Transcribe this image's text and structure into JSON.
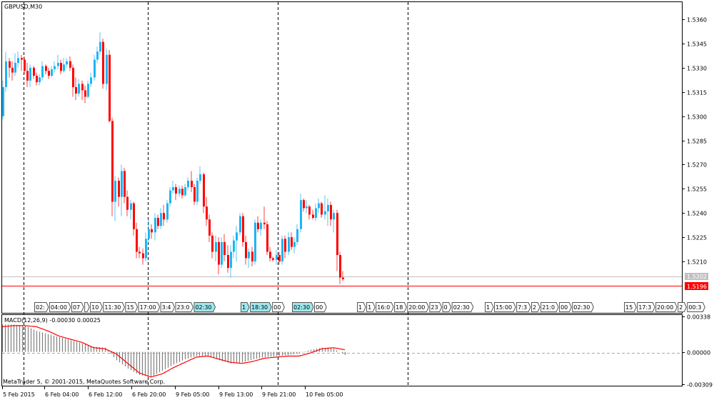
{
  "window": {
    "symbol_title": "GBPUSD,M30"
  },
  "colors": {
    "bull": "#1eb4f5",
    "bear": "#ff0000",
    "neutral": "#000000",
    "histogram": "#808080",
    "signal": "#ff0000",
    "bid_line": "#c0c0c0",
    "ask_line": "#ff0000",
    "event_highlight": "#9ee8ee"
  },
  "price_axis": {
    "ticks": [
      "1.5360",
      "1.5345",
      "1.5330",
      "1.5315",
      "1.5300",
      "1.5285",
      "1.5270",
      "1.5255",
      "1.5240",
      "1.5225",
      "1.5210"
    ],
    "range": [
      1.5198,
      1.5372
    ]
  },
  "price_lines": {
    "bid": {
      "label": "1.5202",
      "value": 1.5202
    },
    "ask": {
      "label": "1.5196",
      "value": 1.5196
    }
  },
  "candles_ohlc": [
    [
      1.53,
      1.5322,
      1.5298,
      1.5318
    ],
    [
      1.5318,
      1.534,
      1.5315,
      1.5334
    ],
    [
      1.5334,
      1.5336,
      1.5324,
      1.533
    ],
    [
      1.533,
      1.5334,
      1.5322,
      1.5327
    ],
    [
      1.5327,
      1.5339,
      1.5325,
      1.5333
    ],
    [
      1.5333,
      1.534,
      1.533,
      1.5336
    ],
    [
      1.5336,
      1.5338,
      1.5328,
      1.5335
    ],
    [
      1.5335,
      1.5337,
      1.5326,
      1.5328
    ],
    [
      1.5328,
      1.5333,
      1.5318,
      1.5322
    ],
    [
      1.5322,
      1.5332,
      1.5318,
      1.533
    ],
    [
      1.533,
      1.5331,
      1.5323,
      1.5325
    ],
    [
      1.5325,
      1.5327,
      1.5319,
      1.5321
    ],
    [
      1.5321,
      1.5326,
      1.5319,
      1.5324
    ],
    [
      1.5324,
      1.5334,
      1.5322,
      1.5331
    ],
    [
      1.5331,
      1.5332,
      1.5326,
      1.5328
    ],
    [
      1.5328,
      1.533,
      1.5323,
      1.5325
    ],
    [
      1.5325,
      1.5331,
      1.5324,
      1.5329
    ],
    [
      1.5329,
      1.5334,
      1.5327,
      1.5331
    ],
    [
      1.5331,
      1.5338,
      1.5329,
      1.5333
    ],
    [
      1.5333,
      1.5335,
      1.5326,
      1.5328
    ],
    [
      1.5328,
      1.5336,
      1.5327,
      1.5332
    ],
    [
      1.5332,
      1.5336,
      1.533,
      1.5334
    ],
    [
      1.5334,
      1.5337,
      1.5328,
      1.533
    ],
    [
      1.533,
      1.5332,
      1.5312,
      1.5318
    ],
    [
      1.5318,
      1.5324,
      1.531,
      1.5314
    ],
    [
      1.5314,
      1.5323,
      1.5312,
      1.532
    ],
    [
      1.532,
      1.5322,
      1.531,
      1.5316
    ],
    [
      1.5316,
      1.5319,
      1.5308,
      1.5312
    ],
    [
      1.5312,
      1.5322,
      1.5311,
      1.532
    ],
    [
      1.532,
      1.5327,
      1.5318,
      1.5324
    ],
    [
      1.5324,
      1.5338,
      1.5322,
      1.5335
    ],
    [
      1.5335,
      1.5343,
      1.5333,
      1.534
    ],
    [
      1.534,
      1.5352,
      1.5338,
      1.5346
    ],
    [
      1.5346,
      1.5348,
      1.5317,
      1.532
    ],
    [
      1.532,
      1.5342,
      1.5316,
      1.5338
    ],
    [
      1.5338,
      1.5341,
      1.5296,
      1.5297
    ],
    [
      1.5297,
      1.5299,
      1.5238,
      1.5247
    ],
    [
      1.5247,
      1.5263,
      1.5235,
      1.526
    ],
    [
      1.526,
      1.5262,
      1.5244,
      1.525
    ],
    [
      1.525,
      1.527,
      1.5238,
      1.5266
    ],
    [
      1.5266,
      1.5268,
      1.5246,
      1.525
    ],
    [
      1.525,
      1.5254,
      1.5238,
      1.5242
    ],
    [
      1.5242,
      1.5248,
      1.5236,
      1.5246
    ],
    [
      1.5246,
      1.5247,
      1.5226,
      1.523
    ],
    [
      1.523,
      1.5234,
      1.5212,
      1.5216
    ],
    [
      1.5216,
      1.5219,
      1.5212,
      1.5215
    ],
    [
      1.5215,
      1.5218,
      1.5208,
      1.5212
    ],
    [
      1.5212,
      1.5228,
      1.521,
      1.5224
    ],
    [
      1.5224,
      1.5236,
      1.5222,
      1.523
    ],
    [
      1.523,
      1.5233,
      1.5224,
      1.5228
    ],
    [
      1.5228,
      1.524,
      1.5223,
      1.5237
    ],
    [
      1.5237,
      1.5239,
      1.523,
      1.5232
    ],
    [
      1.5232,
      1.5243,
      1.523,
      1.524
    ],
    [
      1.524,
      1.5245,
      1.5232,
      1.5236
    ],
    [
      1.5236,
      1.5248,
      1.5234,
      1.5246
    ],
    [
      1.5246,
      1.5256,
      1.5244,
      1.5254
    ],
    [
      1.5254,
      1.526,
      1.5252,
      1.5256
    ],
    [
      1.5256,
      1.5258,
      1.5248,
      1.5252
    ],
    [
      1.5252,
      1.5257,
      1.525,
      1.5255
    ],
    [
      1.5255,
      1.5257,
      1.5249,
      1.5251
    ],
    [
      1.5251,
      1.5258,
      1.525,
      1.5256
    ],
    [
      1.5256,
      1.5262,
      1.5254,
      1.526
    ],
    [
      1.526,
      1.5266,
      1.5253,
      1.5256
    ],
    [
      1.5256,
      1.5258,
      1.5245,
      1.5247
    ],
    [
      1.5247,
      1.5262,
      1.5245,
      1.526
    ],
    [
      1.526,
      1.5269,
      1.5258,
      1.5264
    ],
    [
      1.5264,
      1.5265,
      1.524,
      1.5244
    ],
    [
      1.5244,
      1.525,
      1.5232,
      1.5236
    ],
    [
      1.5236,
      1.5239,
      1.5222,
      1.5226
    ],
    [
      1.5226,
      1.5228,
      1.5212,
      1.5216
    ],
    [
      1.5216,
      1.5226,
      1.521,
      1.5222
    ],
    [
      1.5222,
      1.5225,
      1.5202,
      1.5208
    ],
    [
      1.5208,
      1.5225,
      1.5206,
      1.5222
    ],
    [
      1.5222,
      1.5227,
      1.521,
      1.5214
    ],
    [
      1.5214,
      1.522,
      1.5203,
      1.5206
    ],
    [
      1.5206,
      1.522,
      1.52,
      1.5216
    ],
    [
      1.5216,
      1.5226,
      1.5212,
      1.5223
    ],
    [
      1.5223,
      1.5232,
      1.521,
      1.5228
    ],
    [
      1.5228,
      1.524,
      1.5226,
      1.5238
    ],
    [
      1.5238,
      1.524,
      1.5219,
      1.5222
    ],
    [
      1.5222,
      1.5226,
      1.5208,
      1.5212
    ],
    [
      1.5212,
      1.5218,
      1.5206,
      1.5216
    ],
    [
      1.5216,
      1.5219,
      1.5207,
      1.521
    ],
    [
      1.521,
      1.5236,
      1.5208,
      1.5234
    ],
    [
      1.5234,
      1.5238,
      1.5228,
      1.523
    ],
    [
      1.523,
      1.5236,
      1.5226,
      1.5234
    ],
    [
      1.5234,
      1.5244,
      1.523,
      1.5233
    ],
    [
      1.5233,
      1.5235,
      1.5214,
      1.5216
    ],
    [
      1.5216,
      1.5219,
      1.521,
      1.5212
    ],
    [
      1.5212,
      1.5213,
      1.521,
      1.5211
    ],
    [
      1.5211,
      1.5217,
      1.5208,
      1.5214
    ],
    [
      1.5214,
      1.5216,
      1.5208,
      1.521
    ],
    [
      1.521,
      1.5226,
      1.5208,
      1.5224
    ],
    [
      1.5224,
      1.5226,
      1.5212,
      1.5216
    ],
    [
      1.5216,
      1.5228,
      1.5214,
      1.5225
    ],
    [
      1.5225,
      1.5228,
      1.5217,
      1.5219
    ],
    [
      1.5219,
      1.5225,
      1.5215,
      1.5222
    ],
    [
      1.5222,
      1.5233,
      1.522,
      1.523
    ],
    [
      1.523,
      1.5252,
      1.5228,
      1.5248
    ],
    [
      1.5248,
      1.5249,
      1.5241,
      1.5243
    ],
    [
      1.5243,
      1.5248,
      1.524,
      1.5244
    ],
    [
      1.5244,
      1.5245,
      1.5236,
      1.5239
    ],
    [
      1.5239,
      1.5242,
      1.5236,
      1.5237
    ],
    [
      1.5237,
      1.5246,
      1.5235,
      1.5243
    ],
    [
      1.5243,
      1.5249,
      1.524,
      1.5246
    ],
    [
      1.5246,
      1.5247,
      1.5237,
      1.5239
    ],
    [
      1.5239,
      1.5251,
      1.5236,
      1.5241
    ],
    [
      1.5241,
      1.5249,
      1.5232,
      1.5245
    ],
    [
      1.5245,
      1.5247,
      1.5232,
      1.5236
    ],
    [
      1.5236,
      1.5242,
      1.5228,
      1.524
    ],
    [
      1.524,
      1.5242,
      1.5204,
      1.5214
    ],
    [
      1.5214,
      1.5216,
      1.5196,
      1.52
    ],
    [
      1.52,
      1.5204,
      1.5198,
      1.5199
    ]
  ],
  "events": [
    {
      "label": "02:",
      "highlight": false
    },
    {
      "label": "04:00",
      "highlight": false
    },
    {
      "label": "07",
      "highlight": false
    },
    {
      "label": "",
      "highlight": false
    },
    {
      "label": "10",
      "highlight": false
    },
    {
      "label": "11:30",
      "highlight": false
    },
    {
      "label": "15",
      "highlight": false
    },
    {
      "label": "17:00",
      "highlight": false
    },
    {
      "label": "3:4",
      "highlight": false
    },
    {
      "label": "23:0",
      "highlight": false
    },
    {
      "label": "02:30",
      "highlight": true
    },
    {
      "label": "1",
      "highlight": true
    },
    {
      "label": "18:30",
      "highlight": true
    },
    {
      "label": "00",
      "highlight": false
    },
    {
      "label": "02:30",
      "highlight": true
    },
    {
      "label": "00",
      "highlight": false
    },
    {
      "label": "1",
      "highlight": false
    },
    {
      "label": "1",
      "highlight": false
    },
    {
      "label": "16:0",
      "highlight": false
    },
    {
      "label": "18",
      "highlight": false
    },
    {
      "label": "20:00",
      "highlight": false
    },
    {
      "label": "23",
      "highlight": false
    },
    {
      "label": "0",
      "highlight": false
    },
    {
      "label": "02:30",
      "highlight": false
    },
    {
      "label": "1",
      "highlight": false
    },
    {
      "label": "15:00",
      "highlight": false
    },
    {
      "label": "7:3",
      "highlight": false
    },
    {
      "label": "2",
      "highlight": false
    },
    {
      "label": "21:0",
      "highlight": false
    },
    {
      "label": "00",
      "highlight": false
    },
    {
      "label": "02:30",
      "highlight": false
    },
    {
      "label": "15",
      "highlight": false
    },
    {
      "label": "17:3",
      "highlight": false
    },
    {
      "label": "20:00",
      "highlight": false
    },
    {
      "label": "2",
      "highlight": false
    },
    {
      "label": "00:3",
      "highlight": false
    }
  ],
  "macd": {
    "legend": "MACD(12,26,9) -0.00030 0.00025",
    "axis_ticks": [
      "0.00338",
      "0.00000",
      "-0.00309"
    ],
    "range": [
      -0.00309,
      0.00338
    ],
    "histogram": [
      0.0026,
      0.0026,
      0.0025,
      0.002,
      0.0017,
      0.0014,
      0.0011,
      0.0008,
      0.0005,
      0.0004,
      -0.0008,
      -0.0016,
      -0.0022,
      -0.0024,
      -0.0018,
      -0.0012,
      -0.0007,
      -0.0004,
      -0.0004,
      -0.0008,
      -0.0011,
      -0.001,
      -0.0007,
      -0.0005,
      -0.0004,
      -0.0003,
      -0.0001,
      0.0002,
      0.0004,
      0.0003,
      -0.0003
    ],
    "signal": [
      0.0024,
      0.0025,
      0.0025,
      0.0024,
      0.002,
      0.0015,
      0.0012,
      0.0009,
      0.0004,
      0.0003,
      -0.0002,
      -0.0011,
      -0.002,
      -0.0024,
      -0.0021,
      -0.0015,
      -0.001,
      -0.0005,
      -0.0004,
      -0.0007,
      -0.001,
      -0.0011,
      -0.0009,
      -0.0006,
      -0.0005,
      -0.0004,
      -0.0004,
      -0.0001,
      0.0003,
      0.0004,
      0.0002
    ]
  },
  "copyright": "MetaTrader 5, © 2001-2015, MetaQuotes Software Corp.",
  "time_axis": [
    "5 Feb 2015",
    "6 Feb 04:00",
    "6 Feb 12:00",
    "6 Feb 20:00",
    "9 Feb 05:00",
    "9 Feb 13:00",
    "9 Feb 21:00",
    "10 Feb 05:00"
  ]
}
